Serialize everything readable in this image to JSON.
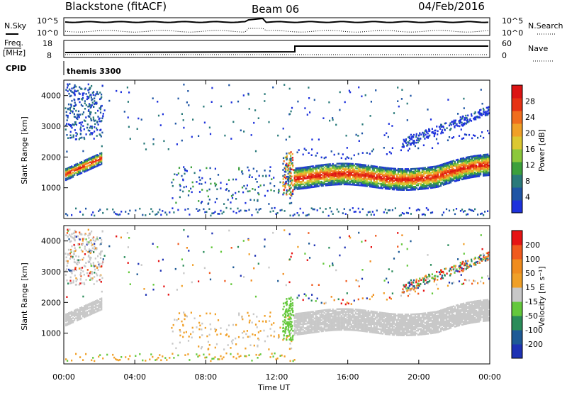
{
  "header": {
    "station": "Blackstone (fitACF)",
    "beam": "Beam 06",
    "date": "04/Feb/2016"
  },
  "side_labels": {
    "nsky": "N.Sky",
    "nsearch": "N.Search",
    "freq": "Freq.",
    "mhz": "[MHz]",
    "nave": "Nave",
    "cpid": "CPID",
    "cpid_value": "themis 3300"
  },
  "noise_panel": {
    "left_ticks": [
      "10^5",
      "10^0"
    ],
    "right_ticks": [
      "10^5",
      "10^0"
    ]
  },
  "freq_panel": {
    "left_ticks": [
      "18",
      "8"
    ],
    "right_ticks": [
      "60",
      "0"
    ]
  },
  "chart_data": [
    {
      "type": "heatmap",
      "name": "power",
      "ylabel": "Slant Range [km]",
      "xlabel": "Time UT",
      "ylim": [
        0,
        4500
      ],
      "xlim": [
        0,
        24
      ],
      "y_ticks": [
        "1000",
        "2000",
        "3000",
        "4000"
      ],
      "x_ticks": [
        "00:00",
        "04:00",
        "08:00",
        "12:00",
        "16:00",
        "20:00",
        "00:00"
      ],
      "colorbar": {
        "label": "Power [dB]",
        "ticks": [
          "4",
          "8",
          "12",
          "16",
          "20",
          "24",
          "28"
        ],
        "colors": [
          "#1e32dc",
          "#1f55a5",
          "#2a7a7a",
          "#3ca03c",
          "#8cc83c",
          "#dcc832",
          "#f0a028",
          "#f06e1e",
          "#e63214",
          "#dc1414"
        ]
      }
    },
    {
      "type": "heatmap",
      "name": "velocity",
      "ylabel": "Slant Range [km]",
      "xlabel": "Time UT",
      "ylim": [
        0,
        4500
      ],
      "xlim": [
        0,
        24
      ],
      "y_ticks": [
        "1000",
        "2000",
        "3000",
        "4000"
      ],
      "x_ticks": [
        "00:00",
        "04:00",
        "08:00",
        "12:00",
        "16:00",
        "20:00",
        "00:00"
      ],
      "colorbar": {
        "label": "Velocity [m s⁻¹]",
        "ticks": [
          "200",
          "100",
          "50",
          "15",
          "-15",
          "-50",
          "-100",
          "-200"
        ],
        "colors": [
          "#1e32b4",
          "#1e5a96",
          "#2a8c5a",
          "#64c83c",
          "#c8c8c8",
          "#f0a028",
          "#f08c1e",
          "#f05a1e",
          "#e61414"
        ]
      }
    }
  ],
  "xaxis_title": "Time UT"
}
